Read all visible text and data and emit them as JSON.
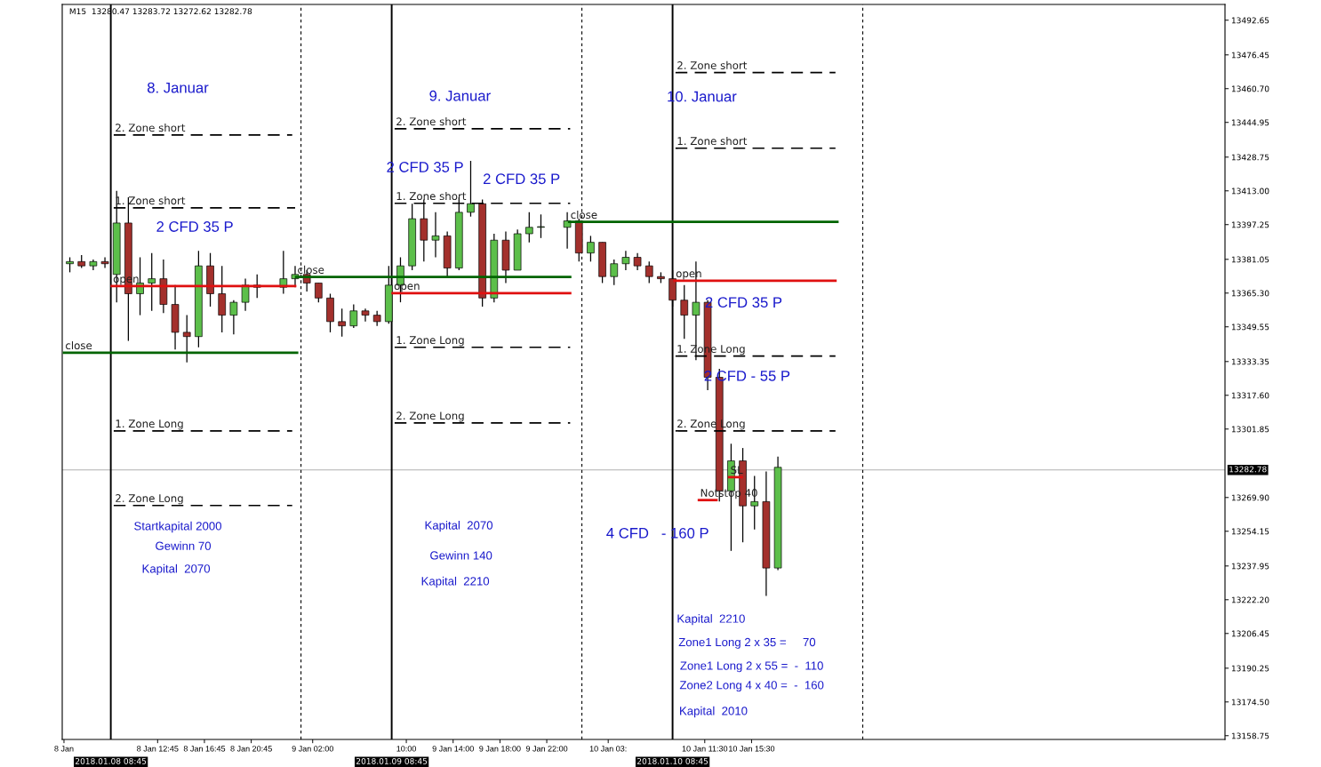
{
  "chart_data": {
    "type": "candlestick",
    "title": "M15  13280.47 13283.72 13272.62 13282.78",
    "x": [
      "2018-01-08T05:15",
      "2018-01-08T06:15",
      "2018-01-08T07:15",
      "2018-01-08T08:15",
      "2018-01-08T09:15",
      "2018-01-08T10:15",
      "2018-01-08T11:15",
      "2018-01-08T12:15",
      "2018-01-08T13:15",
      "2018-01-08T14:15",
      "2018-01-08T15:15",
      "2018-01-08T16:15",
      "2018-01-08T17:15",
      "2018-01-08T18:15",
      "2018-01-08T19:15",
      "2018-01-08T20:15",
      "2018-01-08T21:15",
      "2018-01-08T23:30",
      "2018-01-09T00:30",
      "2018-01-09T01:30",
      "2018-01-09T02:30",
      "2018-01-09T03:30",
      "2018-01-09T04:30",
      "2018-01-09T05:30",
      "2018-01-09T06:30",
      "2018-01-09T07:30",
      "2018-01-09T08:30",
      "2018-01-09T09:30",
      "2018-01-09T10:30",
      "2018-01-09T11:30",
      "2018-01-09T12:30",
      "2018-01-09T13:30",
      "2018-01-09T14:30",
      "2018-01-09T15:30",
      "2018-01-09T16:30",
      "2018-01-09T17:30",
      "2018-01-09T18:30",
      "2018-01-09T19:30",
      "2018-01-09T20:30",
      "2018-01-09T21:30",
      "2018-01-09T23:45",
      "2018-01-10T00:45",
      "2018-01-10T01:45",
      "2018-01-10T02:45",
      "2018-01-10T03:45",
      "2018-01-10T04:45",
      "2018-01-10T05:45",
      "2018-01-10T06:45",
      "2018-01-10T07:45",
      "2018-01-10T08:45",
      "2018-01-10T09:45",
      "2018-01-10T10:45",
      "2018-01-10T11:45",
      "2018-01-10T12:45",
      "2018-01-10T13:45",
      "2018-01-10T14:45",
      "2018-01-10T15:45",
      "2018-01-10T16:45",
      "2018-01-10T17:45"
    ],
    "ohlc": [
      [
        13379,
        13382,
        13375,
        13380
      ],
      [
        13380,
        13383,
        13377,
        13378
      ],
      [
        13378,
        13381,
        13376,
        13380
      ],
      [
        13380,
        13382,
        13377,
        13379
      ],
      [
        13374,
        13413,
        13361,
        13398
      ],
      [
        13398,
        13410,
        13343,
        13365
      ],
      [
        13365,
        13382,
        13355,
        13370
      ],
      [
        13370,
        13384,
        13357,
        13372
      ],
      [
        13372,
        13381,
        13356,
        13360
      ],
      [
        13360,
        13369,
        13339,
        13347
      ],
      [
        13347,
        13355,
        13333,
        13345
      ],
      [
        13345,
        13385,
        13340,
        13378
      ],
      [
        13378,
        13384,
        13359,
        13365
      ],
      [
        13365,
        13378,
        13347,
        13355
      ],
      [
        13355,
        13362,
        13346,
        13361
      ],
      [
        13361,
        13372,
        13357,
        13369
      ],
      [
        13369,
        13374,
        13363,
        13368
      ],
      [
        13368,
        13385,
        13365,
        13372
      ],
      [
        13372,
        13378,
        13368,
        13374
      ],
      [
        13374,
        13376,
        13366,
        13370
      ],
      [
        13370,
        13370,
        13361,
        13363
      ],
      [
        13363,
        13365,
        13347,
        13352
      ],
      [
        13352,
        13358,
        13345,
        13350
      ],
      [
        13350,
        13360,
        13349,
        13357
      ],
      [
        13357,
        13358,
        13352,
        13355
      ],
      [
        13355,
        13357,
        13350,
        13352
      ],
      [
        13352,
        13378,
        13351,
        13369
      ],
      [
        13369,
        13382,
        13361,
        13378
      ],
      [
        13378,
        13407,
        13376,
        13400
      ],
      [
        13400,
        13409,
        13380,
        13390
      ],
      [
        13390,
        13403,
        13382,
        13392
      ],
      [
        13392,
        13394,
        13373,
        13377
      ],
      [
        13377,
        13410,
        13376,
        13403
      ],
      [
        13403,
        13427,
        13401,
        13407
      ],
      [
        13407,
        13409,
        13359,
        13363
      ],
      [
        13363,
        13393,
        13361,
        13390
      ],
      [
        13390,
        13394,
        13370,
        13376
      ],
      [
        13376,
        13395,
        13376,
        13393
      ],
      [
        13393,
        13403,
        13389,
        13396
      ],
      [
        13396,
        13402,
        13391,
        13396
      ],
      [
        13396,
        13403,
        13386,
        13399
      ],
      [
        13399,
        13400,
        13380,
        13384
      ],
      [
        13384,
        13392,
        13380,
        13389
      ],
      [
        13389,
        13389,
        13370,
        13373
      ],
      [
        13373,
        13381,
        13369,
        13379
      ],
      [
        13379,
        13385,
        13376,
        13382
      ],
      [
        13382,
        13384,
        13376,
        13378
      ],
      [
        13378,
        13380,
        13370,
        13373
      ],
      [
        13373,
        13375,
        13370,
        13372
      ],
      [
        13372,
        13376,
        13359,
        13362
      ],
      [
        13362,
        13369,
        13344,
        13355
      ],
      [
        13355,
        13380,
        13334,
        13361
      ],
      [
        13361,
        13362,
        13320,
        13326
      ],
      [
        13326,
        13330,
        13268,
        13273
      ],
      [
        13273,
        13295,
        13245,
        13287
      ],
      [
        13287,
        13293,
        13249,
        13266
      ],
      [
        13266,
        13280,
        13255,
        13268
      ],
      [
        13268,
        13282,
        13224,
        13237
      ],
      [
        13237,
        13289,
        13236,
        13284
      ]
    ],
    "colors": [
      "#5cbf4a",
      "#a3302c",
      "#5cbf4a",
      "#a3302c",
      "#5cbf4a",
      "#a3302c",
      "#5cbf4a",
      "#5cbf4a",
      "#a3302c",
      "#a3302c",
      "#a3302c",
      "#5cbf4a",
      "#a3302c",
      "#a3302c",
      "#5cbf4a",
      "#5cbf4a",
      "#a3302c",
      "#5cbf4a",
      "#5cbf4a",
      "#a3302c",
      "#a3302c",
      "#a3302c",
      "#a3302c",
      "#5cbf4a",
      "#a3302c",
      "#a3302c",
      "#5cbf4a",
      "#5cbf4a",
      "#5cbf4a",
      "#a3302c",
      "#5cbf4a",
      "#a3302c",
      "#5cbf4a",
      "#5cbf4a",
      "#a3302c",
      "#5cbf4a",
      "#a3302c",
      "#5cbf4a",
      "#5cbf4a",
      "#5cbf4a",
      "#5cbf4a",
      "#a3302c",
      "#5cbf4a",
      "#a3302c",
      "#5cbf4a",
      "#5cbf4a",
      "#a3302c",
      "#a3302c",
      "#a3302c",
      "#a3302c",
      "#a3302c",
      "#5cbf4a",
      "#a3302c",
      "#a3302c",
      "#5cbf4a",
      "#a3302c",
      "#5cbf4a",
      "#a3302c",
      "#5cbf4a"
    ],
    "series": [
      {
        "type": "line",
        "name": "2. Zone short",
        "color": "#000000",
        "line_style": "dashed",
        "x": [
          "2018-01-08T09:00",
          "2018-01-09T00:15"
        ],
        "values": [
          13439.1,
          13439.1
        ]
      },
      {
        "type": "line",
        "name": "1. Zone short",
        "color": "#000000",
        "line_style": "dashed",
        "x": [
          "2018-01-08T09:00",
          "2018-01-09T00:30"
        ],
        "values": [
          13405.1,
          13405.1
        ]
      },
      {
        "type": "line",
        "name": "1. Zone Long",
        "color": "#000000",
        "line_style": "dashed",
        "x": [
          "2018-01-08T09:00",
          "2018-01-09T00:15"
        ],
        "values": [
          13301.0,
          13301.0
        ]
      },
      {
        "type": "line",
        "name": "2. Zone Long",
        "color": "#000000",
        "line_style": "dashed",
        "x": [
          "2018-01-08T09:00",
          "2018-01-09T00:15"
        ],
        "values": [
          13266.2,
          13266.2
        ]
      },
      {
        "type": "line",
        "name": "open",
        "color": "#e01010",
        "line_style": "solid",
        "x": [
          "2018-01-08T08:50",
          "2018-01-09T00:30"
        ],
        "values": [
          13368.6,
          13368.6
        ]
      },
      {
        "type": "line",
        "name": "close",
        "color": "#006400",
        "line_style": "solid",
        "x": [
          "2018-01-08T04:45",
          "2018-01-09T00:40"
        ],
        "values": [
          13337.5,
          13337.5
        ]
      },
      {
        "type": "line",
        "name": "2. Zone short",
        "color": "#000000",
        "line_style": "dashed",
        "x": [
          "2018-01-09T09:00",
          "2018-01-10T00:00"
        ],
        "values": [
          13442.0,
          13442.0
        ]
      },
      {
        "type": "line",
        "name": "1. Zone short",
        "color": "#000000",
        "line_style": "dashed",
        "x": [
          "2018-01-09T09:00",
          "2018-01-10T00:00"
        ],
        "values": [
          13407.2,
          13407.2
        ]
      },
      {
        "type": "line",
        "name": "1. Zone Long",
        "color": "#000000",
        "line_style": "dashed",
        "x": [
          "2018-01-09T09:00",
          "2018-01-10T00:00"
        ],
        "values": [
          13340.0,
          13340.0
        ]
      },
      {
        "type": "line",
        "name": "2. Zone Long",
        "color": "#000000",
        "line_style": "dashed",
        "x": [
          "2018-01-09T09:00",
          "2018-01-10T00:00"
        ],
        "values": [
          13304.7,
          13304.7
        ]
      },
      {
        "type": "line",
        "name": "open",
        "color": "#e01010",
        "line_style": "solid",
        "x": [
          "2018-01-09T08:50",
          "2018-01-10T00:00"
        ],
        "values": [
          13365.3,
          13365.3
        ]
      },
      {
        "type": "line",
        "name": "close",
        "color": "#006400",
        "line_style": "solid",
        "x": [
          "2018-01-09T00:35",
          "2018-01-10T00:00"
        ],
        "values": [
          13372.8,
          13372.8
        ]
      },
      {
        "type": "line",
        "name": "2. Zone short",
        "color": "#000000",
        "line_style": "dashed",
        "x": [
          "2018-01-10T09:00",
          "2018-01-10T22:40"
        ],
        "values": [
          13468.2,
          13468.2
        ]
      },
      {
        "type": "line",
        "name": "1. Zone short",
        "color": "#000000",
        "line_style": "dashed",
        "x": [
          "2018-01-10T09:00",
          "2018-01-10T22:40"
        ],
        "values": [
          13432.9,
          13432.9
        ]
      },
      {
        "type": "line",
        "name": "close",
        "color": "#006400",
        "line_style": "solid",
        "x": [
          "2018-01-09T23:55",
          "2018-01-10T22:50"
        ],
        "values": [
          13398.5,
          13398.5
        ]
      },
      {
        "type": "line",
        "name": "open",
        "color": "#e01010",
        "line_style": "solid",
        "x": [
          "2018-01-10T08:55",
          "2018-01-10T22:40"
        ],
        "values": [
          13371.1,
          13371.1
        ]
      },
      {
        "type": "line",
        "name": "1. Zone Long",
        "color": "#000000",
        "line_style": "dashed",
        "x": [
          "2018-01-10T09:00",
          "2018-01-10T22:40"
        ],
        "values": [
          13335.9,
          13335.9
        ]
      },
      {
        "type": "line",
        "name": "2. Zone Long",
        "color": "#000000",
        "line_style": "dashed",
        "x": [
          "2018-01-10T09:00",
          "2018-01-10T22:40"
        ],
        "values": [
          13301.0,
          13301.0
        ]
      },
      {
        "type": "line",
        "name": "Notstop 40",
        "color": "#e01010",
        "line_style": "solid",
        "x": [
          "2018-01-10T11:00",
          "2018-01-10T12:30"
        ],
        "values": [
          13268.7,
          13268.7
        ]
      },
      {
        "type": "line",
        "name": "SL",
        "color": "#e01010",
        "line_style": "solid",
        "x": [
          "2018-01-10T13:35",
          "2018-01-10T14:40"
        ],
        "values": [
          13279.4,
          13279.4
        ]
      }
    ],
    "xlim": [
      "2018-01-08T04:36",
      "2018-01-12T07:57"
    ],
    "ylim": [
      13157,
      13500
    ],
    "xticks": [
      {
        "value": "2018-01-08T04:45",
        "label": "8 Jan"
      },
      {
        "value": "2018-01-08T12:45",
        "label": "8 Jan 12:45"
      },
      {
        "value": "2018-01-08T16:45",
        "label": "8 Jan 16:45"
      },
      {
        "value": "2018-01-08T20:45",
        "label": "8 Jan 20:45"
      },
      {
        "value": "2018-01-09T02:00",
        "label": "9 Jan 02:00"
      },
      {
        "value": "2018-01-09T10:00",
        "label": "10:00"
      },
      {
        "value": "2018-01-09T14:00",
        "label": "9 Jan 14:00"
      },
      {
        "value": "2018-01-09T18:00",
        "label": "9 Jan 18:00"
      },
      {
        "value": "2018-01-09T22:00",
        "label": "9 Jan 22:00"
      },
      {
        "value": "2018-01-10T03:15",
        "label": "10 Jan 03:"
      },
      {
        "value": "2018-01-10T11:30",
        "label": "10 Jan 11:30"
      },
      {
        "value": "2018-01-10T15:30",
        "label": "10 Jan 15:30"
      }
    ],
    "yticks": [
      13492.65,
      13476.45,
      {
        "value": 13460.7,
        "label": "13460.70"
      },
      13444.95,
      13428.75,
      {
        "value": 13413.0,
        "label": "13413.00"
      },
      13397.25,
      13381.05,
      {
        "value": 13365.3,
        "label": "13365.30"
      },
      13349.55,
      13333.35,
      {
        "value": 13317.6,
        "label": "13317.60"
      },
      13301.85,
      {
        "value": 13269.9,
        "label": "13269.90"
      },
      13254.15,
      13237.95,
      {
        "value": 13222.2,
        "label": "13222.20"
      },
      13206.45,
      13190.25,
      {
        "value": 13174.5,
        "label": "13174.50"
      },
      13158.75
    ],
    "ref_lines": [
      {
        "axis": "x",
        "value": "2018-01-08T08:45",
        "label": "2018.01.08 08:45",
        "color": "#000000",
        "line_style": "solid"
      },
      {
        "axis": "x",
        "value": "2018-01-09T08:45",
        "label": "2018.01.09 08:45",
        "color": "#000000",
        "line_style": "solid"
      },
      {
        "axis": "x",
        "value": "2018-01-10T08:45",
        "label": "2018.01.10 08:45",
        "color": "#000000",
        "line_style": "solid"
      },
      {
        "axis": "x",
        "value": "2018-01-09T01:00",
        "color": "#000000",
        "line_style": "dashed"
      },
      {
        "axis": "x",
        "value": "2018-01-10T01:00",
        "color": "#000000",
        "line_style": "dashed"
      },
      {
        "axis": "x",
        "value": "2018-01-11T01:00",
        "color": "#000000",
        "line_style": "dashed"
      },
      {
        "axis": "y",
        "value": 13282.78,
        "label": "13282.78",
        "color": "#b0b0b0",
        "line_style": "solid"
      }
    ],
    "annotations": [
      "8. Januar",
      "9. Januar",
      "10. Januar",
      "2 CFD 35 P",
      "2 CFD 35 P",
      "2 CFD 35 P",
      "2 CFD 35 P",
      "2 CFD - 55 P",
      "4 CFD   - 160 P",
      "Startkapital 2000",
      "Gewinn 70",
      "Kapital  2070",
      "Kapital  2070",
      "Gewinn 140",
      "Kapital  2210",
      "Kapital  2210",
      "Zone1 Long 2 x 35 =     70",
      "Zone1 Long 2 x 55 =  -  110",
      "Zone2 Long 4 x 40 =  -  160",
      "Kapital  2010"
    ],
    "grid": false,
    "legend": false
  }
}
